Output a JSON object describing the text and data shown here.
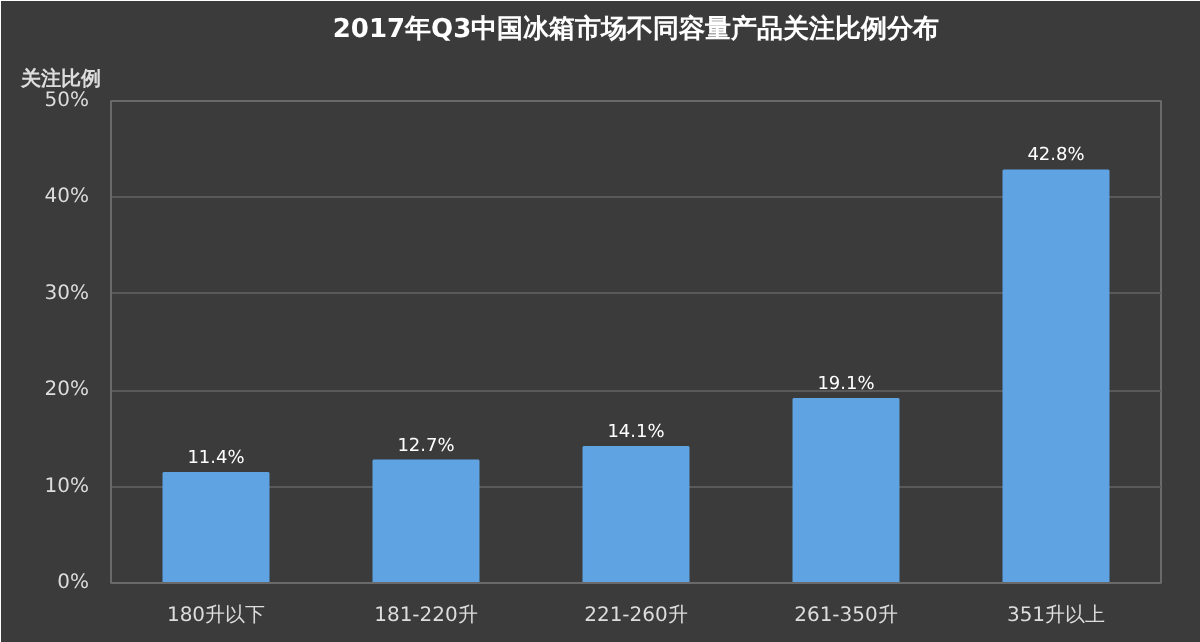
{
  "chart_data": {
    "type": "bar",
    "title": "2017年Q3中国冰箱市场不同容量产品关注比例分布",
    "ylabel": "关注比例",
    "categories": [
      "180升以下",
      "181-220升",
      "221-260升",
      "261-350升",
      "351升以上"
    ],
    "values": [
      11.4,
      12.7,
      14.1,
      19.1,
      42.8
    ],
    "value_labels": [
      "11.4%",
      "12.7%",
      "14.1%",
      "19.1%",
      "42.8%"
    ],
    "color": "#5fa3e3",
    "ylim": [
      0,
      50
    ],
    "yticks": [
      {
        "value": 0,
        "label": "0%"
      },
      {
        "value": 10,
        "label": "10%"
      },
      {
        "value": 20,
        "label": "20%"
      },
      {
        "value": 30,
        "label": "30%"
      },
      {
        "value": 40,
        "label": "40%"
      },
      {
        "value": 50,
        "label": "50%"
      }
    ],
    "grid": "y"
  }
}
